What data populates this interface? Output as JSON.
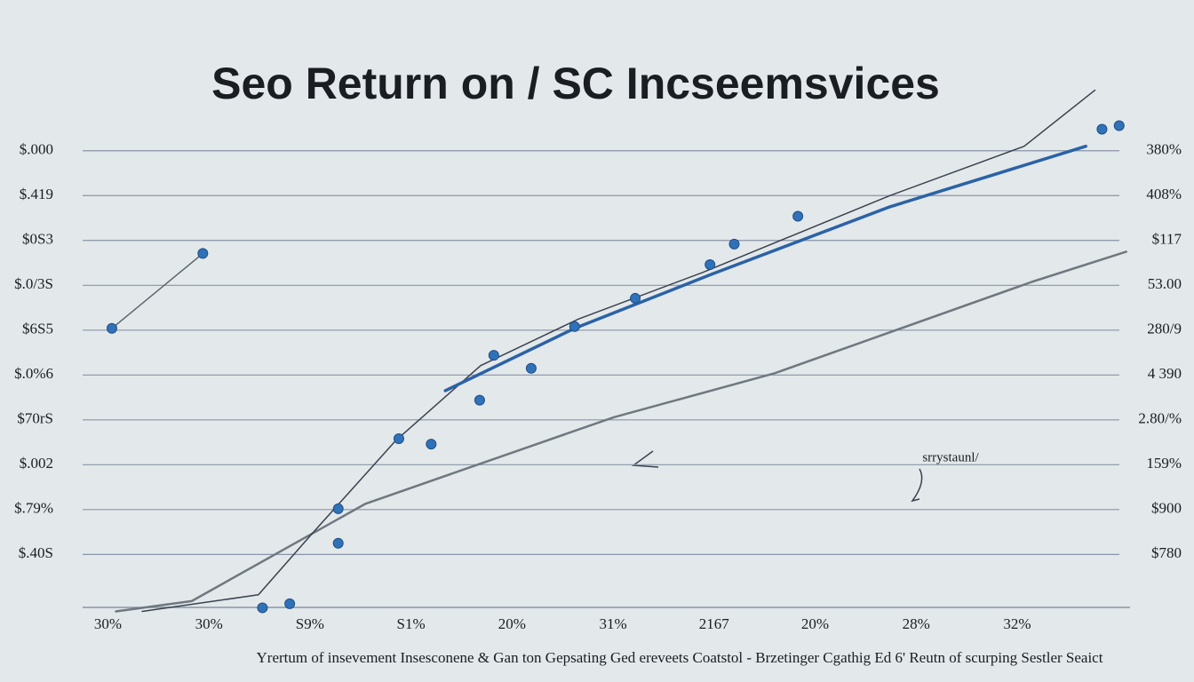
{
  "chart_data": {
    "type": "line",
    "title": "Seo Return on / SC Incseemsvices",
    "x_label": "Yrertum of insevement Insesconene & Gan ton Gepsating Ged ereveets Coatstol - Brzetinger Cgathig Ed 6'  Reutn of scurping Sestler Seaict",
    "annotations": [
      "srrystaunl/"
    ],
    "grid": true,
    "xlim": [
      -0.25,
      10.1
    ],
    "xticks": [
      {
        "value": 0,
        "label": "30%"
      },
      {
        "value": 1,
        "label": "30%"
      },
      {
        "value": 2,
        "label": "S9%"
      },
      {
        "value": 3,
        "label": "S1%"
      },
      {
        "value": 4,
        "label": "20%"
      },
      {
        "value": 5,
        "label": "31%"
      },
      {
        "value": 6,
        "label": "2167"
      },
      {
        "value": 7,
        "label": "20%"
      },
      {
        "value": 8,
        "label": "28%"
      },
      {
        "value": 9,
        "label": "32%"
      }
    ],
    "ylim": [
      -0.3,
      11.5
    ],
    "yticks": [
      {
        "value": 10,
        "label": "$.000"
      },
      {
        "value": 9,
        "label": "$.419"
      },
      {
        "value": 8,
        "label": "$0S3"
      },
      {
        "value": 7,
        "label": "$.0/3S"
      },
      {
        "value": 6,
        "label": "$6S5"
      },
      {
        "value": 5,
        "label": "$.0%6"
      },
      {
        "value": 4,
        "label": "$70rS"
      },
      {
        "value": 3,
        "label": "$.002"
      },
      {
        "value": 2,
        "label": "$.79%"
      },
      {
        "value": 1,
        "label": "$.40S"
      }
    ],
    "y2lim": [
      -0.3,
      11.5
    ],
    "y2ticks": [
      {
        "value": 10,
        "label": "380%"
      },
      {
        "value": 9,
        "label": "408%"
      },
      {
        "value": 8,
        "label": "$117"
      },
      {
        "value": 7,
        "label": "53.00"
      },
      {
        "value": 6,
        "label": "280/9"
      },
      {
        "value": 5,
        "label": "4 390"
      },
      {
        "value": 4,
        "label": "2.80/%"
      },
      {
        "value": 3,
        "label": "159%"
      },
      {
        "value": 2,
        "label": "$900"
      },
      {
        "value": 1,
        "label": "$780"
      }
    ],
    "series": [
      {
        "color": "#6f7880",
        "width": 2.5,
        "line": true,
        "markers": false,
        "x": [
          0.08,
          0.83,
          2.55,
          5.01,
          6.6,
          9.15,
          10.08
        ],
        "values": [
          -0.27,
          -0.04,
          2.13,
          4.06,
          5.04,
          7.08,
          7.75
        ]
      },
      {
        "color": "#3a4250",
        "width": 1.5,
        "line": true,
        "markers": false,
        "x": [
          0.34,
          1.49,
          2.02,
          2.85,
          3.69,
          4.66,
          5.89,
          7.74,
          9.07,
          9.77
        ],
        "values": [
          -0.27,
          0.1,
          1.46,
          3.54,
          5.21,
          6.25,
          7.29,
          9.0,
          10.1,
          11.35
        ]
      },
      {
        "color": "#2b62a6",
        "width": 3.5,
        "line": true,
        "markers": false,
        "x": [
          3.34,
          4.62,
          5.98,
          7.74,
          9.68
        ],
        "values": [
          4.65,
          6.04,
          7.25,
          8.75,
          10.1
        ]
      },
      {
        "color": "#5a6470",
        "width": 1.5,
        "line": true,
        "markers": false,
        "x": [
          0.04,
          0.94
        ],
        "values": [
          6.04,
          7.71
        ]
      },
      {
        "color": "#2f72b8",
        "width": 0,
        "line": false,
        "markers": true,
        "x": [
          0.04,
          0.94,
          1.53,
          1.8,
          2.28,
          2.28,
          2.88,
          3.2,
          3.68,
          3.82,
          4.19,
          4.62,
          5.22,
          5.96,
          6.2,
          6.83,
          9.84,
          10.01
        ],
        "values": [
          6.04,
          7.71,
          -0.19,
          -0.1,
          1.25,
          2.02,
          3.58,
          3.46,
          4.44,
          5.44,
          5.15,
          6.08,
          6.71,
          7.46,
          7.92,
          8.54,
          10.48,
          10.56
        ]
      }
    ]
  }
}
